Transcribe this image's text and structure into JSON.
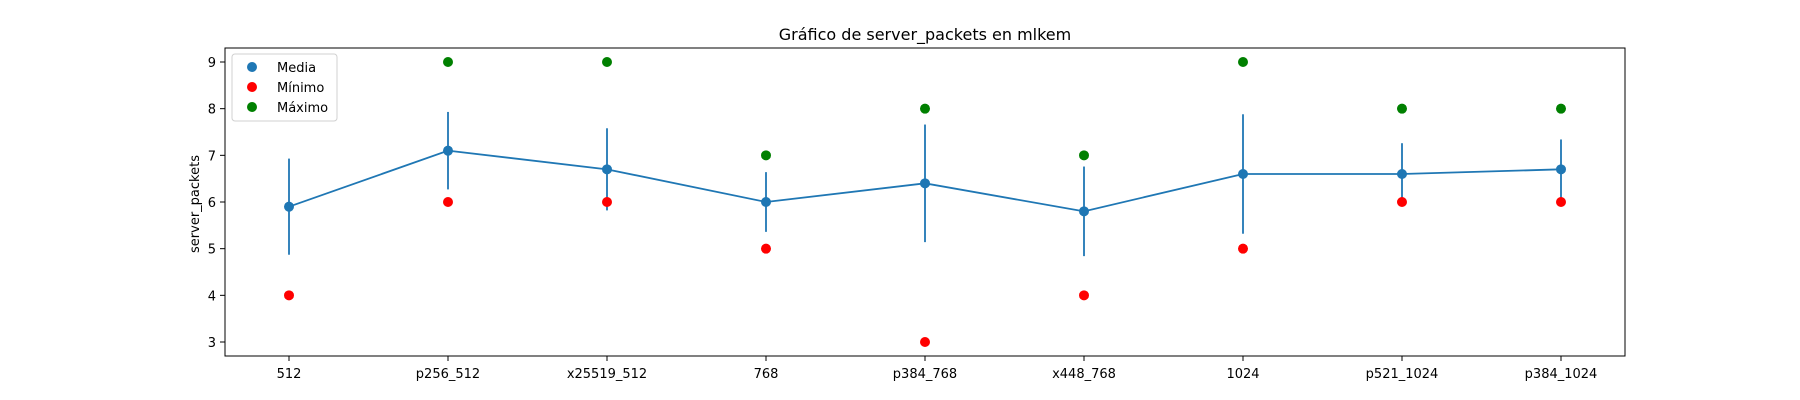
{
  "chart_data": {
    "type": "line",
    "title": "Gráfico de server_packets en mlkem",
    "xlabel": "",
    "ylabel": "server_packets",
    "categories": [
      "512",
      "p256_512",
      "x25519_512",
      "768",
      "p384_768",
      "x448_768",
      "1024",
      "p521_1024",
      "p384_1024"
    ],
    "ylim": [
      2.7,
      9.3
    ],
    "yticks": [
      3,
      4,
      5,
      6,
      7,
      8,
      9
    ],
    "grid": false,
    "legend_position": "top-left",
    "series": [
      {
        "name": "Media",
        "kind": "line-errorbar",
        "color": "#1f77b4",
        "values": [
          5.9,
          7.1,
          6.7,
          6.0,
          6.4,
          5.8,
          6.6,
          6.6,
          6.7
        ],
        "error": [
          1.03,
          0.83,
          0.88,
          0.64,
          1.26,
          0.96,
          1.28,
          0.66,
          0.64
        ]
      },
      {
        "name": "Mínimo",
        "kind": "scatter",
        "color": "#ff0000",
        "values": [
          4,
          6,
          6,
          5,
          3,
          4,
          5,
          6,
          6
        ]
      },
      {
        "name": "Máximo",
        "kind": "scatter",
        "color": "#008000",
        "values": [
          9,
          9,
          9,
          7,
          8,
          7,
          9,
          8,
          8
        ]
      }
    ]
  }
}
